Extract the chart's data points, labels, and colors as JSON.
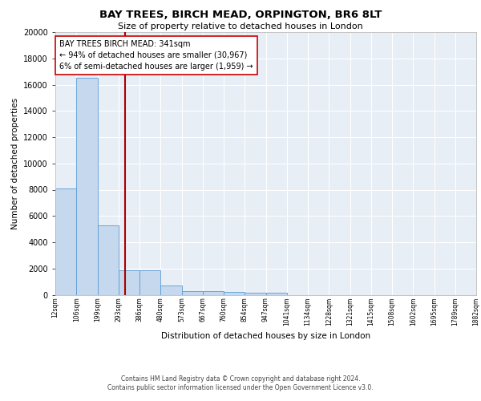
{
  "title": "BAY TREES, BIRCH MEAD, ORPINGTON, BR6 8LT",
  "subtitle": "Size of property relative to detached houses in London",
  "xlabel": "Distribution of detached houses by size in London",
  "ylabel": "Number of detached properties",
  "bar_values": [
    8100,
    16500,
    5300,
    1850,
    1850,
    700,
    300,
    250,
    200,
    180,
    150,
    0,
    0,
    0,
    0,
    0,
    0,
    0,
    0,
    0
  ],
  "bar_labels": [
    "12sqm",
    "106sqm",
    "199sqm",
    "293sqm",
    "386sqm",
    "480sqm",
    "573sqm",
    "667sqm",
    "760sqm",
    "854sqm",
    "947sqm",
    "1041sqm",
    "1134sqm",
    "1228sqm",
    "1321sqm",
    "1415sqm",
    "1508sqm",
    "1602sqm",
    "1695sqm",
    "1789sqm",
    "1882sqm"
  ],
  "bar_color": "#c5d8ed",
  "bar_edge_color": "#5b9bd5",
  "background_color": "#e8eef6",
  "grid_color": "#ffffff",
  "vline_x": 3.3,
  "vline_color": "#aa0000",
  "annotation_text": "BAY TREES BIRCH MEAD: 341sqm\n← 94% of detached houses are smaller (30,967)\n6% of semi-detached houses are larger (1,959) →",
  "annotation_box_color": "#ffffff",
  "annotation_box_edge": "#cc0000",
  "ylim": [
    0,
    20000
  ],
  "yticks": [
    0,
    2000,
    4000,
    6000,
    8000,
    10000,
    12000,
    14000,
    16000,
    18000,
    20000
  ],
  "footer_line1": "Contains HM Land Registry data © Crown copyright and database right 2024.",
  "footer_line2": "Contains public sector information licensed under the Open Government Licence v3.0."
}
